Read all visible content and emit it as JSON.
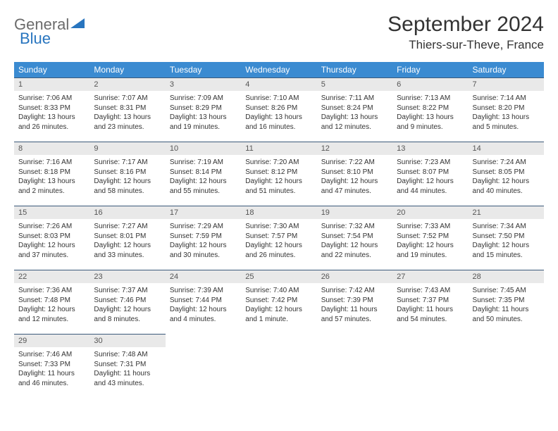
{
  "logo": {
    "text1": "General",
    "text2": "Blue"
  },
  "title": "September 2024",
  "location": "Thiers-sur-Theve, France",
  "colors": {
    "header_bg": "#3b8bd1",
    "header_text": "#ffffff",
    "daynum_bg": "#e9e9e9",
    "border": "#3b5a7a",
    "logo_gray": "#6b6b6b",
    "logo_blue": "#2875bf"
  },
  "weekdays": [
    "Sunday",
    "Monday",
    "Tuesday",
    "Wednesday",
    "Thursday",
    "Friday",
    "Saturday"
  ],
  "days": [
    {
      "n": "1",
      "sunrise": "7:06 AM",
      "sunset": "8:33 PM",
      "daylight": "13 hours and 26 minutes."
    },
    {
      "n": "2",
      "sunrise": "7:07 AM",
      "sunset": "8:31 PM",
      "daylight": "13 hours and 23 minutes."
    },
    {
      "n": "3",
      "sunrise": "7:09 AM",
      "sunset": "8:29 PM",
      "daylight": "13 hours and 19 minutes."
    },
    {
      "n": "4",
      "sunrise": "7:10 AM",
      "sunset": "8:26 PM",
      "daylight": "13 hours and 16 minutes."
    },
    {
      "n": "5",
      "sunrise": "7:11 AM",
      "sunset": "8:24 PM",
      "daylight": "13 hours and 12 minutes."
    },
    {
      "n": "6",
      "sunrise": "7:13 AM",
      "sunset": "8:22 PM",
      "daylight": "13 hours and 9 minutes."
    },
    {
      "n": "7",
      "sunrise": "7:14 AM",
      "sunset": "8:20 PM",
      "daylight": "13 hours and 5 minutes."
    },
    {
      "n": "8",
      "sunrise": "7:16 AM",
      "sunset": "8:18 PM",
      "daylight": "13 hours and 2 minutes."
    },
    {
      "n": "9",
      "sunrise": "7:17 AM",
      "sunset": "8:16 PM",
      "daylight": "12 hours and 58 minutes."
    },
    {
      "n": "10",
      "sunrise": "7:19 AM",
      "sunset": "8:14 PM",
      "daylight": "12 hours and 55 minutes."
    },
    {
      "n": "11",
      "sunrise": "7:20 AM",
      "sunset": "8:12 PM",
      "daylight": "12 hours and 51 minutes."
    },
    {
      "n": "12",
      "sunrise": "7:22 AM",
      "sunset": "8:10 PM",
      "daylight": "12 hours and 47 minutes."
    },
    {
      "n": "13",
      "sunrise": "7:23 AM",
      "sunset": "8:07 PM",
      "daylight": "12 hours and 44 minutes."
    },
    {
      "n": "14",
      "sunrise": "7:24 AM",
      "sunset": "8:05 PM",
      "daylight": "12 hours and 40 minutes."
    },
    {
      "n": "15",
      "sunrise": "7:26 AM",
      "sunset": "8:03 PM",
      "daylight": "12 hours and 37 minutes."
    },
    {
      "n": "16",
      "sunrise": "7:27 AM",
      "sunset": "8:01 PM",
      "daylight": "12 hours and 33 minutes."
    },
    {
      "n": "17",
      "sunrise": "7:29 AM",
      "sunset": "7:59 PM",
      "daylight": "12 hours and 30 minutes."
    },
    {
      "n": "18",
      "sunrise": "7:30 AM",
      "sunset": "7:57 PM",
      "daylight": "12 hours and 26 minutes."
    },
    {
      "n": "19",
      "sunrise": "7:32 AM",
      "sunset": "7:54 PM",
      "daylight": "12 hours and 22 minutes."
    },
    {
      "n": "20",
      "sunrise": "7:33 AM",
      "sunset": "7:52 PM",
      "daylight": "12 hours and 19 minutes."
    },
    {
      "n": "21",
      "sunrise": "7:34 AM",
      "sunset": "7:50 PM",
      "daylight": "12 hours and 15 minutes."
    },
    {
      "n": "22",
      "sunrise": "7:36 AM",
      "sunset": "7:48 PM",
      "daylight": "12 hours and 12 minutes."
    },
    {
      "n": "23",
      "sunrise": "7:37 AM",
      "sunset": "7:46 PM",
      "daylight": "12 hours and 8 minutes."
    },
    {
      "n": "24",
      "sunrise": "7:39 AM",
      "sunset": "7:44 PM",
      "daylight": "12 hours and 4 minutes."
    },
    {
      "n": "25",
      "sunrise": "7:40 AM",
      "sunset": "7:42 PM",
      "daylight": "12 hours and 1 minute."
    },
    {
      "n": "26",
      "sunrise": "7:42 AM",
      "sunset": "7:39 PM",
      "daylight": "11 hours and 57 minutes."
    },
    {
      "n": "27",
      "sunrise": "7:43 AM",
      "sunset": "7:37 PM",
      "daylight": "11 hours and 54 minutes."
    },
    {
      "n": "28",
      "sunrise": "7:45 AM",
      "sunset": "7:35 PM",
      "daylight": "11 hours and 50 minutes."
    },
    {
      "n": "29",
      "sunrise": "7:46 AM",
      "sunset": "7:33 PM",
      "daylight": "11 hours and 46 minutes."
    },
    {
      "n": "30",
      "sunrise": "7:48 AM",
      "sunset": "7:31 PM",
      "daylight": "11 hours and 43 minutes."
    }
  ],
  "labels": {
    "sunrise": "Sunrise:",
    "sunset": "Sunset:",
    "daylight": "Daylight:"
  }
}
